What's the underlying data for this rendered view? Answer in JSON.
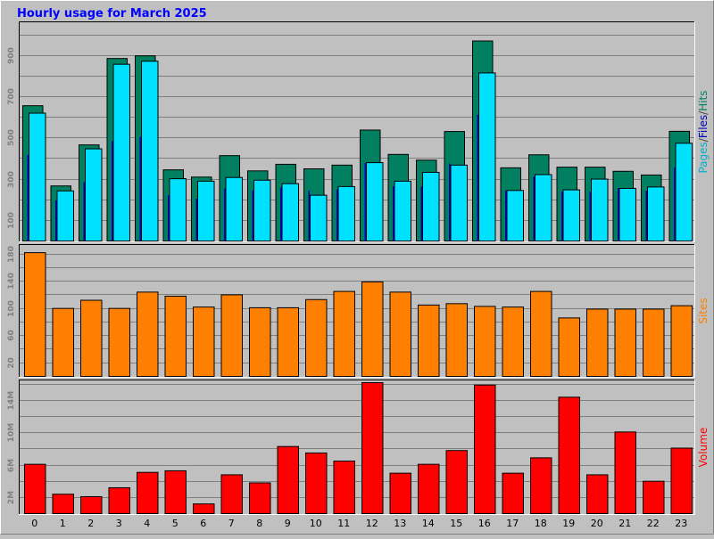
{
  "chart_data": {
    "type": "bar",
    "title": "Hourly usage for March 2025",
    "categories": [
      "0",
      "1",
      "2",
      "3",
      "4",
      "5",
      "6",
      "7",
      "8",
      "9",
      "10",
      "11",
      "12",
      "13",
      "14",
      "15",
      "16",
      "17",
      "18",
      "19",
      "20",
      "21",
      "22",
      "23"
    ],
    "colors": {
      "background": "#c0c0c0",
      "panel": "#c0c0c0",
      "title": "#0000ff",
      "grid": "#808080",
      "hits": "#008060",
      "files": "#0000c0",
      "pages": "#00e0ff",
      "sites": "#ff8000",
      "volume": "#ff0000"
    },
    "panels": [
      {
        "id": "hits-files-pages",
        "ylim": [
          0,
          1050
        ],
        "yticks": [
          100,
          300,
          500,
          700,
          900
        ],
        "ytick_labels": [
          "100",
          "300",
          "500",
          "700",
          "900"
        ],
        "side_label_parts": [
          {
            "text": "Pages",
            "color": "#00b0c8"
          },
          {
            "text": "/",
            "color": "#404040"
          },
          {
            "text": "Files",
            "color": "#0000c0"
          },
          {
            "text": "/",
            "color": "#404040"
          },
          {
            "text": "Hits",
            "color": "#008060"
          }
        ],
        "series": [
          {
            "name": "Hits",
            "values": [
              656,
              267,
              466,
              885,
              898,
              345,
              310,
              414,
              340,
              372,
              350,
              368,
              538,
              420,
              392,
              531,
              970,
              355,
              418,
              358,
              358,
              338,
              320,
              532
            ]
          },
          {
            "name": "Files",
            "values": [
              418,
              197,
              285,
              485,
              505,
              222,
              205,
              255,
              245,
              260,
              245,
              250,
              378,
              265,
              265,
              375,
              612,
              245,
              312,
              240,
              240,
              256,
              243,
              356
            ]
          },
          {
            "name": "Pages",
            "values": [
              620,
              243,
              447,
              857,
              872,
              302,
              290,
              308,
              295,
              278,
              222,
              264,
              380,
              290,
              333,
              368,
              815,
              245,
              322,
              248,
              300,
              255,
              262,
              474
            ]
          }
        ]
      },
      {
        "id": "sites",
        "ylim": [
          0,
          190
        ],
        "yticks": [
          20,
          60,
          100,
          140,
          180
        ],
        "ytick_labels": [
          "20",
          "60",
          "100",
          "140",
          "180"
        ],
        "side_label_parts": [
          {
            "text": "Sites",
            "color": "#ff8000"
          }
        ],
        "series": [
          {
            "name": "Sites",
            "values": [
              182,
              100,
              112,
              100,
              124,
              118,
              102,
              120,
              101,
              101,
              113,
              125,
              139,
              124,
              105,
              107,
              103,
              102,
              125,
              86,
              99,
              99,
              99,
              104
            ]
          }
        ]
      },
      {
        "id": "volume",
        "ylim": [
          0,
          16.2
        ],
        "yticks": [
          2,
          6,
          10,
          14
        ],
        "ytick_labels": [
          "2M",
          "6M",
          "10M",
          "14M"
        ],
        "side_label_parts": [
          {
            "text": "Volume",
            "color": "#ff0000"
          }
        ],
        "series": [
          {
            "name": "Volume",
            "values": [
              6.1,
              2.4,
              2.1,
              3.2,
              5.1,
              5.3,
              1.2,
              4.8,
              3.8,
              8.3,
              7.5,
              6.5,
              16.2,
              5.0,
              6.1,
              7.8,
              15.9,
              5.0,
              6.9,
              14.4,
              4.8,
              10.1,
              4.0,
              8.1
            ]
          }
        ]
      }
    ]
  }
}
